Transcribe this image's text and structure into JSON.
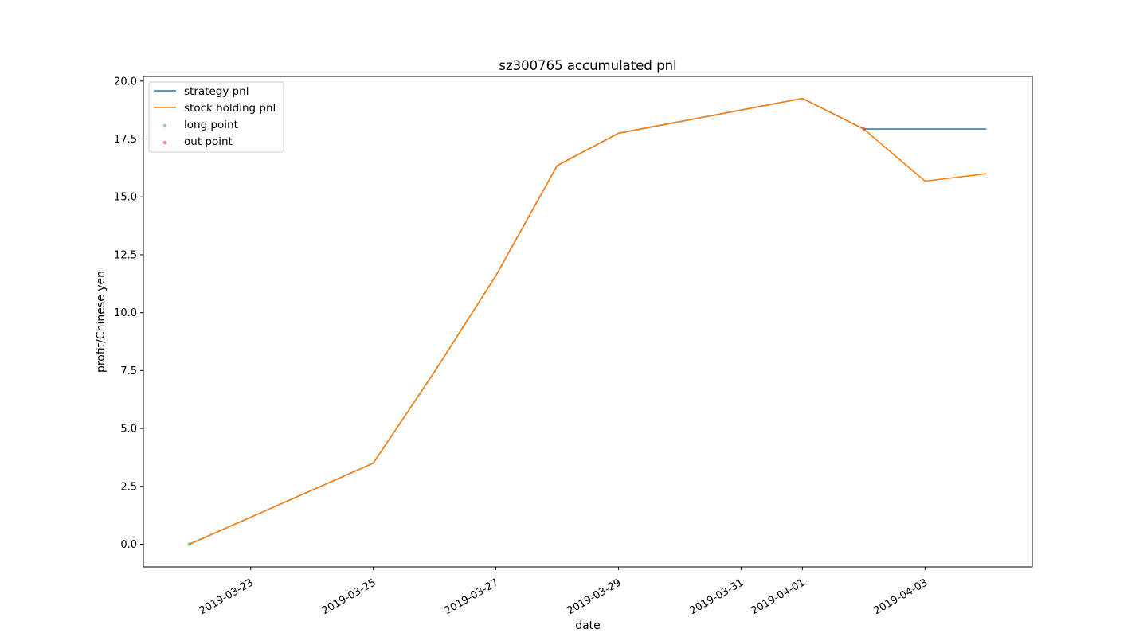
{
  "chart_data": {
    "type": "line",
    "title": "sz300765 accumulated pnl",
    "xlabel": "date",
    "ylabel": "profit/Chinese yen",
    "ylim": [
      -0.98,
      20.2
    ],
    "xlim": [
      "2019-03-21 06:00",
      "2019-04-04 18:00"
    ],
    "x_ticks": [
      "2019-03-23",
      "2019-03-25",
      "2019-03-27",
      "2019-03-29",
      "2019-03-31",
      "2019-04-01",
      "2019-04-03"
    ],
    "y_ticks": [
      "0.0",
      "2.5",
      "5.0",
      "7.5",
      "10.0",
      "12.5",
      "15.0",
      "17.5",
      "20.0"
    ],
    "grid": false,
    "legend_position": "upper left",
    "series": [
      {
        "name": "strategy pnl",
        "kind": "line",
        "color": "#1f77b4",
        "x": [
          "2019-03-22",
          "2019-03-25",
          "2019-03-26",
          "2019-03-27",
          "2019-03-28",
          "2019-03-29",
          "2019-04-01",
          "2019-04-02",
          "2019-04-03",
          "2019-04-04"
        ],
        "y": [
          0.0,
          3.5,
          7.45,
          11.6,
          16.35,
          17.75,
          19.25,
          17.93,
          17.93,
          17.93
        ]
      },
      {
        "name": "stock holding pnl",
        "kind": "line",
        "color": "#ff7f0e",
        "x": [
          "2019-03-22",
          "2019-03-25",
          "2019-03-26",
          "2019-03-27",
          "2019-03-28",
          "2019-03-29",
          "2019-04-01",
          "2019-04-02",
          "2019-04-03",
          "2019-04-04"
        ],
        "y": [
          0.0,
          3.5,
          7.45,
          11.6,
          16.35,
          17.75,
          19.25,
          17.93,
          15.68,
          16.0
        ]
      },
      {
        "name": "long point",
        "kind": "scatter",
        "color": "#2ca02c",
        "x": [
          "2019-03-22"
        ],
        "y": [
          0.0
        ]
      },
      {
        "name": "out point",
        "kind": "scatter",
        "color": "#d62728",
        "x": [
          "2019-04-02"
        ],
        "y": [
          17.93
        ]
      }
    ]
  }
}
